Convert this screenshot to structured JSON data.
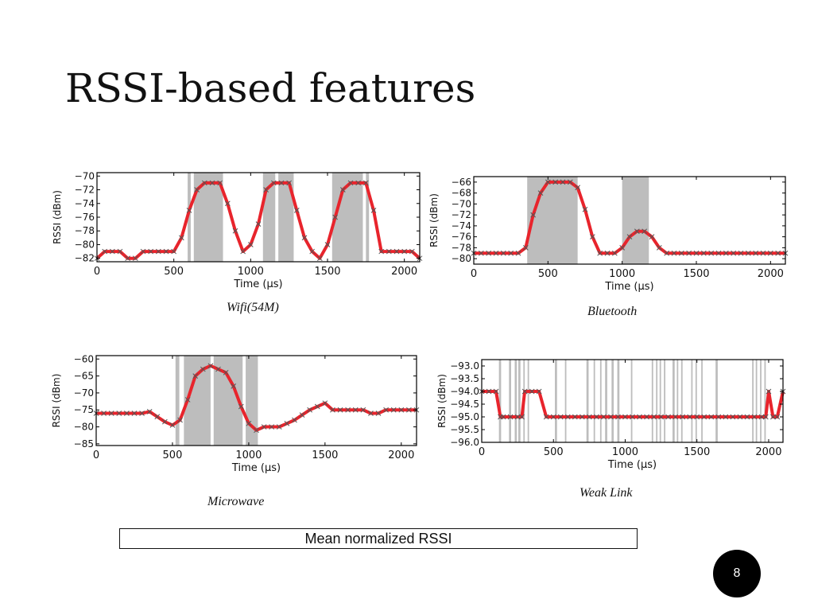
{
  "slide": {
    "title": "RSSI-based features",
    "summary_label": "Mean normalized RSSI",
    "page_number": "8"
  },
  "colors": {
    "trace": "#e8242c",
    "marker": "#555555",
    "interference_band": "#bdbdbd"
  },
  "chart_data": [
    {
      "id": "wifi",
      "type": "line",
      "caption": "Wifi(54M)",
      "xlabel": "Time (μs)",
      "ylabel": "RSSI (dBm)",
      "xlim": [
        0,
        2100
      ],
      "ylim": [
        -82.5,
        -69.5
      ],
      "xticks": [
        0,
        500,
        1000,
        1500,
        2000
      ],
      "xtick_labels": [
        "0",
        "500",
        "1000",
        "1500",
        "2000"
      ],
      "yticks": [
        -70,
        -72,
        -74,
        -76,
        -78,
        -80,
        -82
      ],
      "ytick_labels": [
        "−70",
        "−72",
        "−74",
        "−76",
        "−78",
        "−80",
        "−82"
      ],
      "bands": [
        [
          590,
          610
        ],
        [
          630,
          820
        ],
        [
          1080,
          1160
        ],
        [
          1180,
          1280
        ],
        [
          1530,
          1730
        ],
        [
          1750,
          1770
        ]
      ],
      "x": [
        0,
        50,
        100,
        150,
        200,
        250,
        300,
        350,
        400,
        450,
        500,
        550,
        600,
        650,
        700,
        750,
        800,
        850,
        900,
        950,
        1000,
        1050,
        1100,
        1150,
        1200,
        1250,
        1300,
        1350,
        1400,
        1450,
        1500,
        1550,
        1600,
        1650,
        1700,
        1750,
        1800,
        1850,
        1900,
        1950,
        2000,
        2050,
        2100
      ],
      "y": [
        -82,
        -81,
        -81,
        -81,
        -82,
        -82,
        -81,
        -81,
        -81,
        -81,
        -81,
        -79,
        -75,
        -72,
        -71,
        -71,
        -71,
        -74,
        -78,
        -81,
        -80,
        -77,
        -72,
        -71,
        -71,
        -71,
        -75,
        -79,
        -81,
        -82,
        -80,
        -76,
        -72,
        -71,
        -71,
        -71,
        -75,
        -81,
        -81,
        -81,
        -81,
        -81,
        -82
      ]
    },
    {
      "id": "bluetooth",
      "type": "line",
      "caption": "Bluetooth",
      "xlabel": "Time (μs)",
      "ylabel": "RSSI (dBm)",
      "xlim": [
        0,
        2100
      ],
      "ylim": [
        -81,
        -65
      ],
      "xticks": [
        0,
        500,
        1000,
        1500,
        2000
      ],
      "xtick_labels": [
        "0",
        "500",
        "1000",
        "1500",
        "2000"
      ],
      "yticks": [
        -66,
        -68,
        -70,
        -72,
        -74,
        -76,
        -78,
        -80
      ],
      "ytick_labels": [
        "−66",
        "−68",
        "−70",
        "−72",
        "−74",
        "−76",
        "−78",
        "−80"
      ],
      "bands": [
        [
          360,
          700
        ],
        [
          1000,
          1180
        ]
      ],
      "x": [
        0,
        50,
        100,
        150,
        200,
        250,
        300,
        350,
        400,
        450,
        500,
        550,
        600,
        650,
        700,
        750,
        800,
        850,
        900,
        950,
        1000,
        1050,
        1100,
        1150,
        1200,
        1250,
        1300,
        1350,
        1400,
        1450,
        1500,
        1550,
        1600,
        1650,
        1700,
        1750,
        1800,
        1850,
        1900,
        1950,
        2000,
        2050,
        2100
      ],
      "y": [
        -79,
        -79,
        -79,
        -79,
        -79,
        -79,
        -79,
        -78,
        -72,
        -68,
        -66,
        -66,
        -66,
        -66,
        -67,
        -71,
        -76,
        -79,
        -79,
        -79,
        -78,
        -76,
        -75,
        -75,
        -76,
        -78,
        -79,
        -79,
        -79,
        -79,
        -79,
        -79,
        -79,
        -79,
        -79,
        -79,
        -79,
        -79,
        -79,
        -79,
        -79,
        -79,
        -79
      ]
    },
    {
      "id": "microwave",
      "type": "line",
      "caption": "Microwave",
      "xlabel": "Time (μs)",
      "ylabel": "RSSI (dBm)",
      "xlim": [
        0,
        2100
      ],
      "ylim": [
        -85.5,
        -59
      ],
      "xticks": [
        0,
        500,
        1000,
        1500,
        2000
      ],
      "xtick_labels": [
        "0",
        "500",
        "1000",
        "1500",
        "2000"
      ],
      "yticks": [
        -60,
        -65,
        -70,
        -75,
        -80,
        -85
      ],
      "ytick_labels": [
        "−60",
        "−65",
        "−70",
        "−75",
        "−80",
        "−85"
      ],
      "bands": [
        [
          520,
          545
        ],
        [
          575,
          750
        ],
        [
          770,
          960
        ],
        [
          980,
          1060
        ]
      ],
      "x": [
        0,
        50,
        100,
        150,
        200,
        250,
        300,
        350,
        400,
        450,
        500,
        550,
        600,
        650,
        700,
        750,
        800,
        850,
        900,
        950,
        1000,
        1050,
        1100,
        1150,
        1200,
        1250,
        1300,
        1350,
        1400,
        1450,
        1500,
        1550,
        1600,
        1650,
        1700,
        1750,
        1800,
        1850,
        1900,
        1950,
        2000,
        2050,
        2100
      ],
      "y": [
        -76,
        -76,
        -76,
        -76,
        -76,
        -76,
        -76,
        -75.5,
        -77,
        -78.5,
        -79.5,
        -78,
        -72,
        -65,
        -63,
        -62,
        -63,
        -64,
        -68,
        -74,
        -79,
        -81,
        -80,
        -80,
        -80,
        -79,
        -78,
        -76.5,
        -75,
        -74,
        -73,
        -75,
        -75,
        -75,
        -75,
        -75,
        -76,
        -76,
        -75,
        -75,
        -75,
        -75,
        -75
      ]
    },
    {
      "id": "weak-link",
      "type": "line",
      "caption": "Weak Link",
      "xlabel": "Time (μs)",
      "ylabel": "RSSI (dBm)",
      "xlim": [
        0,
        2100
      ],
      "ylim": [
        -96,
        -92.75
      ],
      "xticks": [
        0,
        500,
        1000,
        1500,
        2000
      ],
      "xtick_labels": [
        "0",
        "500",
        "1000",
        "1500",
        "2000"
      ],
      "yticks": [
        -93.0,
        -93.5,
        -94.0,
        -94.5,
        -95.0,
        -95.5,
        -96.0
      ],
      "ytick_labels": [
        "−93.0",
        "−93.5",
        "−94.0",
        "−94.5",
        "−95.0",
        "−95.5",
        "−96.0"
      ],
      "bands": [
        [
          120,
          135
        ],
        [
          190,
          205
        ],
        [
          230,
          245
        ],
        [
          255,
          270
        ],
        [
          290,
          300
        ],
        [
          320,
          330
        ],
        [
          510,
          525
        ],
        [
          580,
          590
        ],
        [
          730,
          745
        ],
        [
          780,
          790
        ],
        [
          825,
          835
        ],
        [
          860,
          875
        ],
        [
          905,
          920
        ],
        [
          945,
          960
        ],
        [
          1040,
          1050
        ],
        [
          1185,
          1195
        ],
        [
          1215,
          1225
        ],
        [
          1240,
          1250
        ],
        [
          1270,
          1280
        ],
        [
          1330,
          1345
        ],
        [
          1360,
          1370
        ],
        [
          1390,
          1400
        ],
        [
          1460,
          1470
        ],
        [
          1490,
          1500
        ],
        [
          1530,
          1540
        ],
        [
          1630,
          1645
        ],
        [
          1885,
          1895
        ],
        [
          1910,
          1920
        ],
        [
          1940,
          1950
        ],
        [
          1970,
          1980
        ]
      ],
      "x": [
        0,
        50,
        100,
        130,
        150,
        200,
        250,
        280,
        300,
        350,
        400,
        450,
        500,
        550,
        600,
        650,
        700,
        750,
        800,
        850,
        900,
        950,
        1000,
        1050,
        1100,
        1150,
        1200,
        1250,
        1300,
        1350,
        1400,
        1450,
        1500,
        1550,
        1600,
        1650,
        1700,
        1750,
        1800,
        1850,
        1900,
        1950,
        1980,
        2000,
        2030,
        2060,
        2100
      ],
      "y": [
        -94,
        -94,
        -94,
        -95,
        -95,
        -95,
        -95,
        -95,
        -94,
        -94,
        -94,
        -95,
        -95,
        -95,
        -95,
        -95,
        -95,
        -95,
        -95,
        -95,
        -95,
        -95,
        -95,
        -95,
        -95,
        -95,
        -95,
        -95,
        -95,
        -95,
        -95,
        -95,
        -95,
        -95,
        -95,
        -95,
        -95,
        -95,
        -95,
        -95,
        -95,
        -95,
        -95,
        -94,
        -95,
        -95,
        -94
      ]
    }
  ]
}
